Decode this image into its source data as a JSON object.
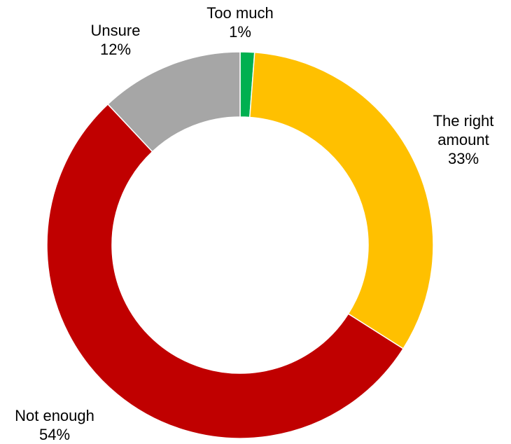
{
  "chart_data": {
    "type": "pie",
    "donut": true,
    "title": "",
    "slices": [
      {
        "label_lines": [
          "Too much"
        ],
        "percent_text": "1%",
        "value": 1.2,
        "color": "#00B050"
      },
      {
        "label_lines": [
          "The right",
          "amount"
        ],
        "percent_text": "33%",
        "value": 32.8,
        "color": "#FFC000"
      },
      {
        "label_lines": [
          "Not enough"
        ],
        "percent_text": "54%",
        "value": 54,
        "color": "#C00000"
      },
      {
        "label_lines": [
          "Unsure"
        ],
        "percent_text": "12%",
        "value": 12,
        "color": "#A6A6A6"
      }
    ]
  }
}
